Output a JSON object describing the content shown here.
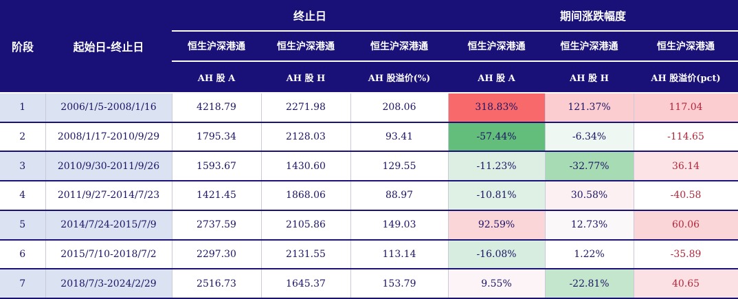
{
  "header": {
    "col_stage": "阶段",
    "col_period": "起始日-终止日",
    "group_end": "终止日",
    "group_change": "期间涨跌幅度",
    "index_name": "恒生沪深港通",
    "sub_ah_a": "AH 股 A",
    "sub_ah_h": "AH 股 H",
    "sub_premium": "AH 股溢价(%)",
    "sub_premium_pct": "AH 股溢价(pct)"
  },
  "rows": [
    {
      "stage": "1",
      "period": "2006/1/5-2008/1/16",
      "end_a": "4218.79",
      "end_h": "2271.98",
      "end_premium": "208.06",
      "chg_a": "318.83%",
      "chg_h": "121.37%",
      "chg_premium": "117.04",
      "bg_a": "#f8696b",
      "bg_h": "#fbcdd0",
      "bg_p": "#fbcdd0"
    },
    {
      "stage": "2",
      "period": "2008/1/17-2010/9/29",
      "end_a": "1795.34",
      "end_h": "2128.03",
      "end_premium": "93.41",
      "chg_a": "-57.44%",
      "chg_h": "-6.34%",
      "chg_premium": "-114.65",
      "bg_a": "#63be7b",
      "bg_h": "#eef7f1",
      "bg_p": "#ffffff"
    },
    {
      "stage": "3",
      "period": "2010/9/30-2011/9/26",
      "end_a": "1593.67",
      "end_h": "1430.60",
      "end_premium": "129.55",
      "chg_a": "-11.23%",
      "chg_h": "-32.77%",
      "chg_premium": "36.14",
      "bg_a": "#dcefe2",
      "bg_h": "#a6dbb4",
      "bg_p": "#fce4e6"
    },
    {
      "stage": "4",
      "period": "2011/9/27-2014/7/23",
      "end_a": "1421.45",
      "end_h": "1868.06",
      "end_premium": "88.97",
      "chg_a": "-10.81%",
      "chg_h": "30.58%",
      "chg_premium": "-40.58",
      "bg_a": "#dff1e4",
      "bg_h": "#fcf0f2",
      "bg_p": "#ffffff"
    },
    {
      "stage": "5",
      "period": "2014/7/24-2015/7/9",
      "end_a": "2737.59",
      "end_h": "2105.86",
      "end_premium": "149.03",
      "chg_a": "92.59%",
      "chg_h": "12.73%",
      "chg_premium": "60.06",
      "bg_a": "#fbd6d9",
      "bg_h": "#fbf8fa",
      "bg_p": "#fbd6d9"
    },
    {
      "stage": "6",
      "period": "2015/7/10-2018/7/2",
      "end_a": "2297.30",
      "end_h": "2131.55",
      "end_premium": "113.14",
      "chg_a": "-16.08%",
      "chg_h": "1.22%",
      "chg_premium": "-35.89",
      "bg_a": "#d6ede0",
      "bg_h": "#ffffff",
      "bg_p": "#ffffff"
    },
    {
      "stage": "7",
      "period": "2018/7/3-2024/2/29",
      "end_a": "2516.73",
      "end_h": "1645.37",
      "end_premium": "153.79",
      "chg_a": "9.55%",
      "chg_h": "-22.81%",
      "chg_premium": "40.65",
      "bg_a": "#fcf4f6",
      "bg_h": "#c3e6cd",
      "bg_p": "#fce1e4"
    }
  ]
}
